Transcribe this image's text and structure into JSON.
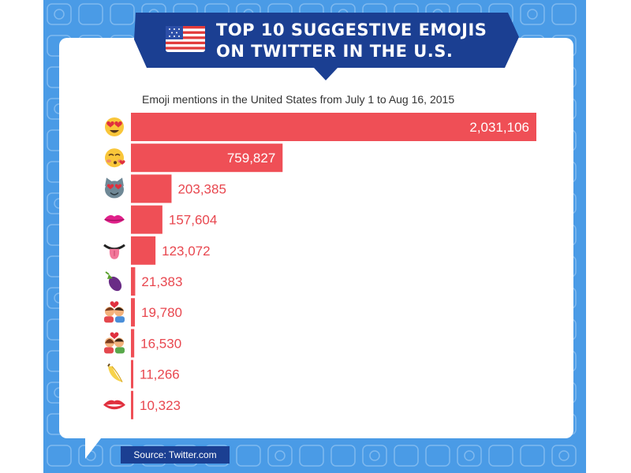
{
  "title_line1": "TOP 10 SUGGESTIVE EMOJIS",
  "title_line2": "ON TWITTER IN THE U.S.",
  "source": "Source: Twitter.com",
  "colors": {
    "background": "#4a9be6",
    "bar": "#ef4f56",
    "label_outside": "#e8474f",
    "label_inside": "#ffffff",
    "banner": "#1b3f92"
  },
  "chart_data": {
    "type": "bar",
    "orientation": "horizontal",
    "title": "Emoji mentions in the United States from July 1 to Aug 16, 2015",
    "categories": [
      {
        "icon": "heart-eyes-face-icon",
        "value": 2031106,
        "label": "2,031,106"
      },
      {
        "icon": "kissing-face-icon",
        "value": 759827,
        "label": "759,827"
      },
      {
        "icon": "heart-eyes-cat-icon",
        "value": 203385,
        "label": "203,385"
      },
      {
        "icon": "kiss-mark-icon",
        "value": 157604,
        "label": "157,604"
      },
      {
        "icon": "tongue-icon",
        "value": 123072,
        "label": "123,072"
      },
      {
        "icon": "eggplant-icon",
        "value": 21383,
        "label": "21,383"
      },
      {
        "icon": "kissing-couple-icon",
        "value": 19780,
        "label": "19,780"
      },
      {
        "icon": "couple-with-heart-icon",
        "value": 16530,
        "label": "16,530"
      },
      {
        "icon": "banana-icon",
        "value": 11266,
        "label": "11,266"
      },
      {
        "icon": "mouth-icon",
        "value": 10323,
        "label": "10,323"
      }
    ],
    "xlim": [
      0,
      2031106
    ],
    "grid": false,
    "legend": "none"
  }
}
